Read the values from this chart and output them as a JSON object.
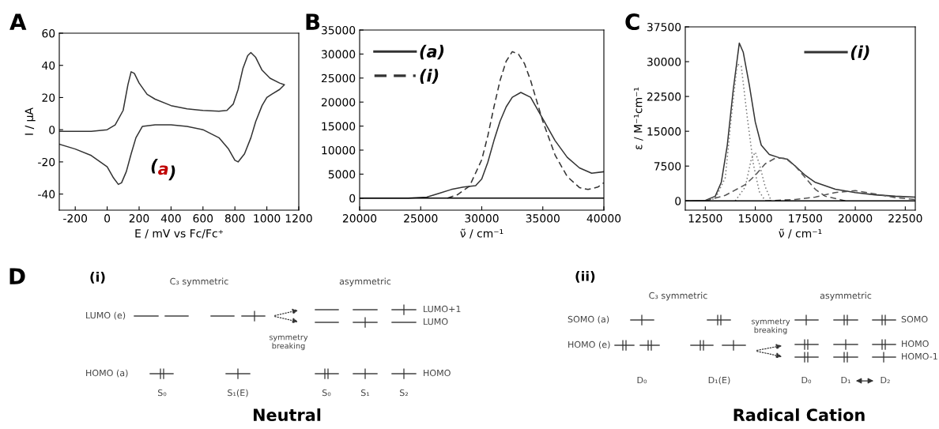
{
  "chart_data": [
    {
      "type": "line",
      "title": "A",
      "xlabel": "E / mV vs Fc/Fc⁺",
      "ylabel": "I / μA",
      "xlim": [
        -300,
        1200
      ],
      "xticks": [
        -200,
        0,
        200,
        400,
        600,
        800,
        1000,
        1200
      ],
      "ylim": [
        -50,
        60
      ],
      "yticks": [
        -40,
        -20,
        0,
        20,
        40,
        60
      ],
      "grid": false,
      "legend": false,
      "series": [
        {
          "color": "#333333",
          "x": [
            -300,
            -100,
            0,
            50,
            100,
            130,
            150,
            170,
            200,
            250,
            300,
            400,
            500,
            600,
            700,
            750,
            790,
            820,
            850,
            880,
            900,
            930,
            970,
            1020,
            1080,
            1110,
            1080,
            1030,
            1000,
            970,
            930,
            900,
            860,
            820,
            800,
            760,
            700,
            600,
            500,
            400,
            300,
            220,
            180,
            150,
            120,
            90,
            70,
            40,
            0,
            -100,
            -200,
            -300
          ],
          "values": [
            -1,
            -1,
            0,
            3,
            12,
            28,
            36,
            35,
            29,
            22,
            19,
            15,
            13,
            12,
            11.5,
            12,
            16,
            25,
            38,
            46,
            48,
            45,
            37,
            32,
            29,
            28,
            25,
            22,
            20,
            15,
            5,
            -5,
            -15,
            -20,
            -19,
            -12,
            -5,
            0,
            2,
            3,
            3,
            2,
            -5,
            -15,
            -26,
            -33,
            -34,
            -30,
            -23,
            -16,
            -12,
            -9
          ]
        }
      ],
      "annotations": [
        "(a)"
      ]
    },
    {
      "type": "line",
      "title": "B",
      "xlabel": "ν̃ / cm⁻¹",
      "xlim": [
        20000,
        40000
      ],
      "xticks": [
        20000,
        25000,
        30000,
        35000,
        40000
      ],
      "ylim": [
        -2500,
        35000
      ],
      "yticks": [
        0,
        5000,
        10000,
        15000,
        20000,
        25000,
        30000,
        35000
      ],
      "grid": false,
      "legend": "top left",
      "ref_lines": [
        {
          "axis": "y",
          "value": 0,
          "color": "#000000"
        }
      ],
      "series": [
        {
          "name": "(a)",
          "color": "#333333",
          "line_style": "solid",
          "x": [
            20000,
            24000,
            25500,
            26500,
            27500,
            28500,
            29500,
            30000,
            30500,
            31000,
            31500,
            32000,
            32500,
            33200,
            34000,
            35000,
            36000,
            37000,
            38000,
            39000,
            40000
          ],
          "values": [
            0,
            0,
            200,
            1000,
            1800,
            2300,
            2600,
            4000,
            7500,
            12000,
            16000,
            19000,
            21000,
            22000,
            21000,
            16500,
            12000,
            8500,
            6300,
            5200,
            5500
          ]
        },
        {
          "name": "(i)",
          "color": "#333333",
          "line_style": "dashed",
          "x": [
            27200,
            28000,
            29000,
            30000,
            30500,
            31000,
            31500,
            32000,
            32500,
            33000,
            33500,
            34000,
            35000,
            36000,
            37000,
            38000,
            38700,
            39500,
            40000
          ],
          "values": [
            0,
            700,
            2500,
            8000,
            13000,
            19000,
            24500,
            28500,
            30500,
            30000,
            28000,
            24500,
            16000,
            9000,
            4500,
            2200,
            1800,
            2300,
            3200
          ]
        }
      ]
    },
    {
      "type": "line",
      "title": "C",
      "xlabel": "ν̃ / cm⁻¹",
      "ylabel": "ε / M⁻¹cm⁻¹",
      "xlim": [
        11500,
        23000
      ],
      "xticks": [
        12500,
        15000,
        17500,
        20000,
        22500
      ],
      "ylim": [
        -2000,
        37500
      ],
      "yticks": [
        0,
        7500,
        15000,
        22500,
        30000,
        37500
      ],
      "grid": false,
      "legend": "top right",
      "ref_lines": [
        {
          "axis": "y",
          "value": 0,
          "color": "#000000"
        }
      ],
      "series": [
        {
          "name": "(i)",
          "color": "#333333",
          "line_style": "solid",
          "x": [
            11500,
            12500,
            13000,
            13300,
            13600,
            13900,
            14200,
            14400,
            14700,
            15000,
            15300,
            15700,
            16200,
            16600,
            17000,
            17500,
            18000,
            19000,
            20000,
            21000,
            22000,
            23000
          ],
          "values": [
            0,
            100,
            1000,
            4000,
            12000,
            24000,
            34000,
            32000,
            25000,
            17000,
            12000,
            10000,
            9300,
            9000,
            7500,
            5500,
            4000,
            2500,
            1800,
            1300,
            1000,
            800
          ]
        },
        {
          "color": "#777777",
          "line_style": "dotted",
          "x": [
            12500,
            13000,
            13500,
            13800,
            14100,
            14300,
            14600,
            14900,
            15200,
            15500
          ],
          "values": [
            0,
            500,
            5000,
            18000,
            29500,
            29000,
            18000,
            8000,
            2000,
            0
          ]
        },
        {
          "color": "#777777",
          "line_style": "dotted",
          "x": [
            14000,
            14500,
            14800,
            15000,
            15200,
            15500,
            15800
          ],
          "values": [
            0,
            3000,
            9000,
            10500,
            8000,
            3000,
            0
          ]
        },
        {
          "color": "#555555",
          "line_style": "dashed",
          "x": [
            12500,
            13500,
            14500,
            15000,
            15500,
            16000,
            16500,
            17000,
            17500,
            18000,
            18500,
            19500
          ],
          "values": [
            0,
            1200,
            3500,
            5500,
            8000,
            9200,
            9200,
            7500,
            5000,
            2500,
            1000,
            0
          ]
        },
        {
          "color": "#555555",
          "line_style": "dashed",
          "x": [
            15500,
            17000,
            18000,
            19000,
            20000,
            21000,
            22000,
            23000
          ],
          "values": [
            0,
            300,
            800,
            1800,
            2200,
            1500,
            700,
            300
          ]
        }
      ]
    },
    {
      "type": "other",
      "title": "D",
      "subtitle": "(i)",
      "annotations": [
        "C₃ symmetric",
        "asymmetric",
        "LUMO (e)",
        "HOMO (a)",
        "LUMO+1",
        "LUMO",
        "HOMO",
        "symmetry\nbreaking",
        "S₀",
        "S₁(E)",
        "S₀",
        "S₁",
        "S₂",
        "Neutral"
      ]
    },
    {
      "type": "other",
      "subtitle": "(ii)",
      "annotations": [
        "C₃ symmetric",
        "asymmetric",
        "SOMO (a)",
        "HOMO (e)",
        "symmetry\nbreaking",
        "SOMO",
        "HOMO",
        "HOMO-1",
        "D₀",
        "D₁(E)",
        "D₀",
        "D₁",
        "D₂",
        "Radical Cation"
      ]
    }
  ]
}
